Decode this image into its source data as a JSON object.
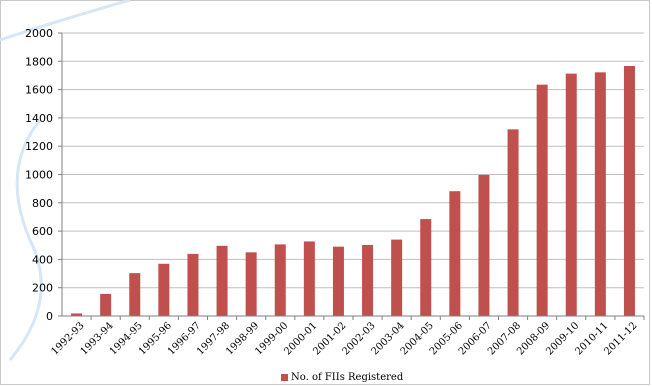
{
  "chart_data": {
    "type": "bar",
    "categories": [
      "1992-93",
      "1993-94",
      "1994-95",
      "1995-96",
      "1996-97",
      "1997-98",
      "1998-99",
      "1999-00",
      "2000-01",
      "2001-02",
      "2002-03",
      "2003-04",
      "2004-05",
      "2005-06",
      "2006-07",
      "2007-08",
      "2008-09",
      "2009-10",
      "2010-11",
      "2011-12"
    ],
    "series": [
      {
        "name": "No. of FIIs Registered",
        "color": "#c0504d",
        "values": [
          18,
          156,
          303,
          369,
          439,
          496,
          450,
          506,
          527,
          490,
          502,
          540,
          685,
          882,
          997,
          1319,
          1635,
          1713,
          1722,
          1767
        ]
      }
    ],
    "yticks": [
      "0",
      "200",
      "400",
      "600",
      "800",
      "1000",
      "1200",
      "1400",
      "1600",
      "1800",
      "2000"
    ],
    "ylim": [
      0,
      2000
    ],
    "title": "",
    "xlabel": "",
    "ylabel": "",
    "grid": "horizontal",
    "legend": "bottom"
  }
}
